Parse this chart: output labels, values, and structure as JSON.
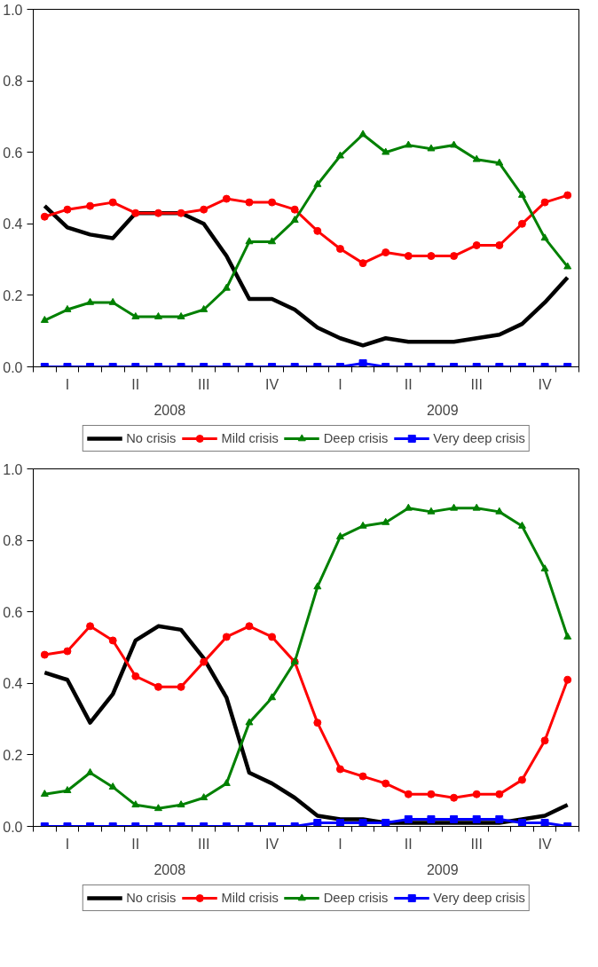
{
  "chart_data": [
    {
      "type": "line",
      "categories": [
        null,
        "I",
        null,
        null,
        "II",
        null,
        null,
        "III",
        null,
        null,
        "IV",
        null,
        null,
        "I",
        null,
        null,
        "II",
        null,
        null,
        "III",
        null,
        null,
        "IV",
        null
      ],
      "series": [
        {
          "name": "No crisis",
          "color": "#000000",
          "marker": "none",
          "values": [
            0.45,
            0.39,
            0.37,
            0.36,
            0.43,
            0.43,
            0.43,
            0.4,
            0.31,
            0.19,
            0.19,
            0.16,
            0.11,
            0.08,
            0.06,
            0.08,
            0.07,
            0.07,
            0.07,
            0.08,
            0.09,
            0.12,
            0.18,
            0.25
          ]
        },
        {
          "name": "Mild crisis",
          "color": "#ff0000",
          "marker": "circle",
          "values": [
            0.42,
            0.44,
            0.45,
            0.46,
            0.43,
            0.43,
            0.43,
            0.44,
            0.47,
            0.46,
            0.46,
            0.44,
            0.38,
            0.33,
            0.29,
            0.32,
            0.31,
            0.31,
            0.31,
            0.34,
            0.34,
            0.4,
            0.46,
            0.48
          ]
        },
        {
          "name": "Deep crisis",
          "color": "#008000",
          "marker": "triangle",
          "values": [
            0.13,
            0.16,
            0.18,
            0.18,
            0.14,
            0.14,
            0.14,
            0.16,
            0.22,
            0.35,
            0.35,
            0.41,
            0.51,
            0.59,
            0.65,
            0.6,
            0.62,
            0.61,
            0.62,
            0.58,
            0.57,
            0.48,
            0.36,
            0.28
          ]
        },
        {
          "name": "Very deep crisis",
          "color": "#0000ff",
          "marker": "square",
          "values": [
            0.0,
            0.0,
            0.0,
            0.0,
            0.0,
            0.0,
            0.0,
            0.0,
            0.0,
            0.0,
            0.0,
            0.0,
            0.0,
            0.0,
            0.01,
            0.0,
            0.0,
            0.0,
            0.0,
            0.0,
            0.0,
            0.0,
            0.0,
            0.0
          ]
        }
      ],
      "ylim": [
        0,
        1
      ],
      "yticks": [
        {
          "value": 0,
          "label": "0.0"
        },
        {
          "value": 0.2,
          "label": "0.2"
        },
        {
          "value": 0.4,
          "label": "0.4"
        },
        {
          "value": 0.6,
          "label": "0.6"
        },
        {
          "value": 0.8,
          "label": "0.8"
        },
        {
          "value": 1,
          "label": "1.0"
        }
      ],
      "annotations": [
        "2008",
        "2009"
      ],
      "legend": "bottom",
      "line_style": "solid"
    },
    {
      "type": "line",
      "categories": [
        null,
        "I",
        null,
        null,
        "II",
        null,
        null,
        "III",
        null,
        null,
        "IV",
        null,
        null,
        "I",
        null,
        null,
        "II",
        null,
        null,
        "III",
        null,
        null,
        "IV",
        null
      ],
      "series": [
        {
          "name": "No crisis",
          "color": "#000000",
          "marker": "none",
          "values": [
            0.43,
            0.41,
            0.29,
            0.37,
            0.52,
            0.56,
            0.55,
            0.47,
            0.36,
            0.15,
            0.12,
            0.08,
            0.03,
            0.02,
            0.02,
            0.01,
            0.01,
            0.01,
            0.01,
            0.01,
            0.01,
            0.02,
            0.03,
            0.06
          ]
        },
        {
          "name": "Mild crisis",
          "color": "#ff0000",
          "marker": "circle",
          "values": [
            0.48,
            0.49,
            0.56,
            0.52,
            0.42,
            0.39,
            0.39,
            0.46,
            0.53,
            0.56,
            0.53,
            0.46,
            0.29,
            0.16,
            0.14,
            0.12,
            0.09,
            0.09,
            0.08,
            0.09,
            0.09,
            0.13,
            0.24,
            0.41
          ]
        },
        {
          "name": "Deep crisis",
          "color": "#008000",
          "marker": "triangle",
          "values": [
            0.09,
            0.1,
            0.15,
            0.11,
            0.06,
            0.05,
            0.06,
            0.08,
            0.12,
            0.29,
            0.36,
            0.46,
            0.67,
            0.81,
            0.84,
            0.85,
            0.89,
            0.88,
            0.89,
            0.89,
            0.88,
            0.84,
            0.72,
            0.53
          ]
        },
        {
          "name": "Very deep crisis",
          "color": "#0000ff",
          "marker": "square",
          "values": [
            0.0,
            0.0,
            0.0,
            0.0,
            0.0,
            0.0,
            0.0,
            0.0,
            0.0,
            0.0,
            0.0,
            0.0,
            0.01,
            0.01,
            0.01,
            0.01,
            0.02,
            0.02,
            0.02,
            0.02,
            0.02,
            0.01,
            0.01,
            0.0
          ]
        }
      ],
      "ylim": [
        0,
        1
      ],
      "yticks": [
        {
          "value": 0,
          "label": "0.0"
        },
        {
          "value": 0.2,
          "label": "0.2"
        },
        {
          "value": 0.4,
          "label": "0.4"
        },
        {
          "value": 0.6,
          "label": "0.6"
        },
        {
          "value": 0.8,
          "label": "0.8"
        },
        {
          "value": 1,
          "label": "1.0"
        }
      ],
      "annotations": [
        "2008",
        "2009"
      ],
      "legend": "bottom",
      "line_style": "solid"
    }
  ]
}
